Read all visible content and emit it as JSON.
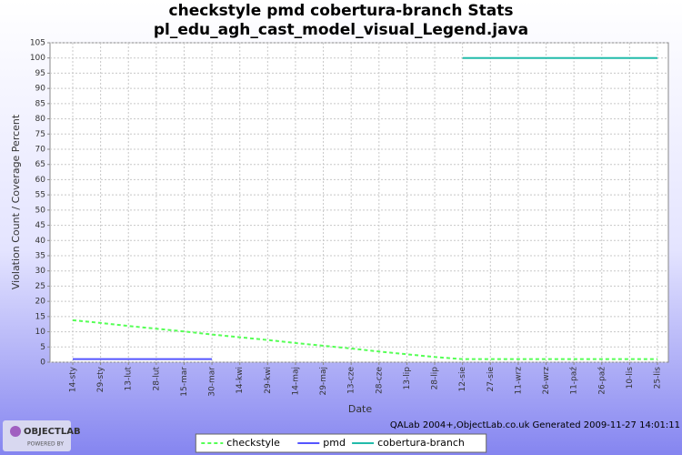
{
  "chart_data": {
    "type": "line",
    "title": "checkstyle pmd cobertura-branch  Stats",
    "subtitle": "pl_edu_agh_cast_model_visual_Legend.java",
    "x_label": "Date",
    "y_label": "Violation Count / Coverage Percent",
    "categories": [
      "14-sty",
      "29-sty",
      "13-lut",
      "28-lut",
      "15-mar",
      "30-mar",
      "14-kwi",
      "29-kwi",
      "14-maj",
      "29-maj",
      "13-cze",
      "28-cze",
      "13-lip",
      "28-lip",
      "12-sie",
      "27-sie",
      "11-wrz",
      "26-wrz",
      "11-paź",
      "26-paź",
      "10-lis",
      "25-lis"
    ],
    "series": [
      {
        "name": "checkstyle",
        "color": "#55ff55",
        "dashed": true,
        "values": [
          13.8,
          12.9,
          11.9,
          11.0,
          10.1,
          9.1,
          8.2,
          7.3,
          6.3,
          5.4,
          4.5,
          3.5,
          2.6,
          1.7,
          1,
          1,
          1,
          1,
          1,
          1,
          1,
          1
        ]
      },
      {
        "name": "pmd",
        "color": "#5555ff",
        "dashed": false,
        "values": [
          1,
          1,
          1,
          1,
          1,
          1,
          null,
          null,
          null,
          null,
          null,
          null,
          null,
          null,
          null,
          null,
          null,
          null,
          null,
          null,
          null,
          null
        ]
      },
      {
        "name": "cobertura-branch",
        "color": "#22bbaa",
        "dashed": false,
        "values": [
          null,
          null,
          null,
          null,
          null,
          null,
          null,
          null,
          null,
          null,
          null,
          null,
          null,
          null,
          100,
          100,
          100,
          100,
          100,
          100,
          100,
          100
        ]
      }
    ],
    "ylim": [
      0,
      105
    ],
    "yticks": [
      0,
      5,
      10,
      15,
      20,
      25,
      30,
      35,
      40,
      45,
      50,
      55,
      60,
      65,
      70,
      75,
      80,
      85,
      90,
      95,
      100,
      105
    ],
    "grid": true,
    "legend": "bottom",
    "footer": "QALab 2004+,ObjectLab.co.uk Generated 2009-11-27 14:01:11",
    "logo": {
      "name": "OBJECTLAB",
      "tagline": "POWERED BY"
    }
  }
}
